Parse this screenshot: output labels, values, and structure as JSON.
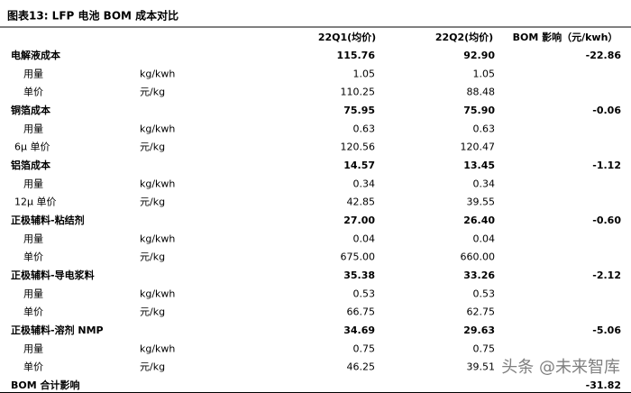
{
  "header": {
    "title": "图表13:   LFP 电池 BOM 成本对比"
  },
  "table": {
    "columns": [
      "22Q1(均价)",
      "22Q2(均价)",
      "BOM 影响（元/kwh）"
    ],
    "rows": [
      {
        "label": "电解液成本",
        "q1": "115.76",
        "q2": "92.90",
        "impact": "-22.86",
        "bold": true
      },
      {
        "label": "用量",
        "unit": "kg/kwh",
        "q1": "1.05",
        "q2": "1.05"
      },
      {
        "label": "单价",
        "unit": "元/kg",
        "q1": "110.25",
        "q2": "88.48"
      },
      {
        "label": "铜箔成本",
        "q1": "75.95",
        "q2": "75.90",
        "impact": "-0.06",
        "bold": true
      },
      {
        "label": "用量",
        "unit": "kg/kwh",
        "q1": "0.63",
        "q2": "0.63"
      },
      {
        "label": "6μ 单价",
        "unit": "元/kg",
        "q1": "120.56",
        "q2": "120.47"
      },
      {
        "label": "铝箔成本",
        "q1": "14.57",
        "q2": "13.45",
        "impact": "-1.12",
        "bold": true
      },
      {
        "label": "用量",
        "unit": "kg/kwh",
        "q1": "0.34",
        "q2": "0.34"
      },
      {
        "label": "12μ 单价",
        "unit": "元/kg",
        "q1": "42.85",
        "q2": "39.55"
      },
      {
        "label": "正极辅料-粘结剂",
        "q1": "27.00",
        "q2": "26.40",
        "impact": "-0.60",
        "bold": true
      },
      {
        "label": "用量",
        "unit": "kg/kwh",
        "q1": "0.04",
        "q2": "0.04"
      },
      {
        "label": "单价",
        "unit": "元/kg",
        "q1": "675.00",
        "q2": "660.00"
      },
      {
        "label": "正极辅料-导电浆料",
        "q1": "35.38",
        "q2": "33.26",
        "impact": "-2.12",
        "bold": true
      },
      {
        "label": "用量",
        "unit": "kg/kwh",
        "q1": "0.53",
        "q2": "0.53"
      },
      {
        "label": "单价",
        "unit": "元/kg",
        "q1": "66.75",
        "q2": "62.75"
      },
      {
        "label": "正极辅料-溶剂 NMP",
        "q1": "34.69",
        "q2": "29.63",
        "impact": "-5.06",
        "bold": true
      },
      {
        "label": "用量",
        "unit": "kg/kwh",
        "q1": "0.75",
        "q2": "0.75"
      },
      {
        "label": "单价",
        "unit": "元/kg",
        "q1": "46.25",
        "q2": "39.51"
      },
      {
        "label": "BOM 合计影响",
        "impact": "-31.82",
        "bold": true
      }
    ]
  },
  "watermark": "头条 @未来智库"
}
